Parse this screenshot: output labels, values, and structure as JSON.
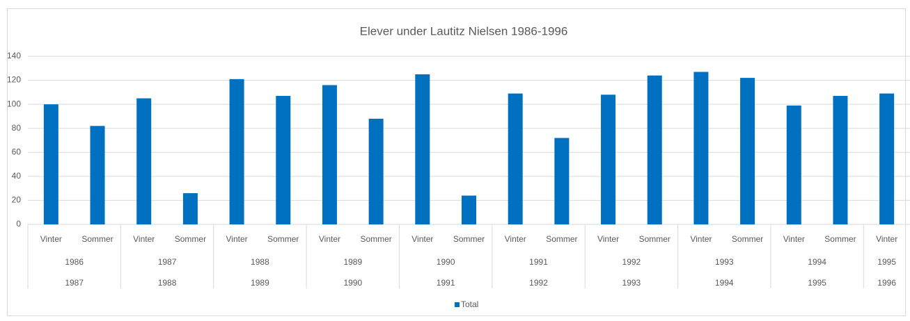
{
  "chart_data": {
    "type": "bar",
    "title": "Elever under Lautitz Nielsen 1986-1996",
    "series": [
      {
        "name": "Total",
        "color": "#0070c0"
      }
    ],
    "groups": [
      {
        "years": [
          "1986",
          "1987"
        ],
        "categories": [
          "Vinter",
          "Sommer"
        ],
        "values": [
          100,
          82
        ]
      },
      {
        "years": [
          "1987",
          "1988"
        ],
        "categories": [
          "Vinter",
          "Sommer"
        ],
        "values": [
          105,
          26
        ]
      },
      {
        "years": [
          "1988",
          "1989"
        ],
        "categories": [
          "Vinter",
          "Sommer"
        ],
        "values": [
          121,
          107
        ]
      },
      {
        "years": [
          "1989",
          "1990"
        ],
        "categories": [
          "Vinter",
          "Sommer"
        ],
        "values": [
          116,
          88
        ]
      },
      {
        "years": [
          "1990",
          "1991"
        ],
        "categories": [
          "Vinter",
          "Sommer"
        ],
        "values": [
          125,
          24
        ]
      },
      {
        "years": [
          "1991",
          "1992"
        ],
        "categories": [
          "Vinter",
          "Sommer"
        ],
        "values": [
          109,
          72
        ]
      },
      {
        "years": [
          "1992",
          "1993"
        ],
        "categories": [
          "Vinter",
          "Sommer"
        ],
        "values": [
          108,
          124
        ]
      },
      {
        "years": [
          "1993",
          "1994"
        ],
        "categories": [
          "Vinter",
          "Sommer"
        ],
        "values": [
          127,
          122
        ]
      },
      {
        "years": [
          "1994",
          "1995"
        ],
        "categories": [
          "Vinter",
          "Sommer"
        ],
        "values": [
          99,
          107
        ]
      },
      {
        "years": [
          "1995",
          "1996"
        ],
        "categories": [
          "Vinter"
        ],
        "values": [
          109
        ]
      }
    ],
    "ylim": [
      0,
      140
    ],
    "yticks": [
      0,
      20,
      40,
      60,
      80,
      100,
      120,
      140
    ],
    "grid": true,
    "legend": "bottom"
  }
}
